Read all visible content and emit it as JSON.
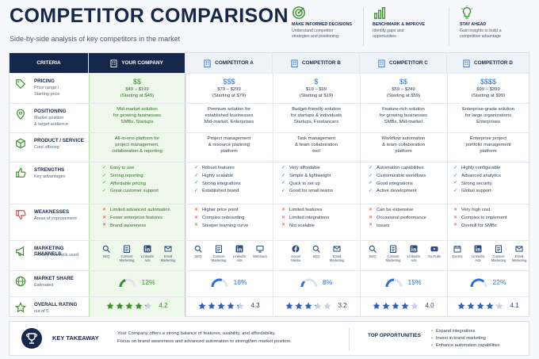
{
  "header": {
    "title": "COMPETITOR COMPARISON",
    "subtitle": "Side-by-side analysis of key competitors in the market",
    "features": [
      {
        "icon": "target-icon",
        "title": "MAKE INFORMED DECISIONS",
        "text1": "Understand competitor",
        "text2": "strategies and positioning"
      },
      {
        "icon": "bar-chart-icon",
        "title": "BENCHMARK & IMPROVE",
        "text1": "Identify gaps and",
        "text2": "opportunities"
      },
      {
        "icon": "lightbulb-icon",
        "title": "STAY AHEAD",
        "text1": "Gain insights to build a",
        "text2": "competitive advantage"
      }
    ]
  },
  "columns": [
    "CRITERIA",
    "YOUR COMPANY",
    "COMPETITOR A",
    "COMPETITOR B",
    "COMPETITOR C",
    "COMPETITOR D"
  ],
  "criteria": [
    {
      "name": "PRICING",
      "sub1": "Price range /",
      "sub2": "Starting price",
      "icon": "price-tag-icon"
    },
    {
      "name": "POSITIONING",
      "sub1": "Market position",
      "sub2": "& target audience",
      "icon": "location-pin-icon"
    },
    {
      "name": "PRODUCT / SERVICE",
      "sub1": "Core offering",
      "sub2": "",
      "icon": "box-icon"
    },
    {
      "name": "STRENGTHS",
      "sub1": "Key advantages",
      "sub2": "",
      "icon": "thumbs-up-icon"
    },
    {
      "name": "WEAKNESSES",
      "sub1": "Areas of improvement",
      "sub2": "",
      "icon": "thumbs-down-icon"
    },
    {
      "name": "MARKETING CHANNELS",
      "sub1": "Primary channels used",
      "sub2": "",
      "icon": "megaphone-icon"
    },
    {
      "name": "MARKET SHARE",
      "sub1": "Estimated",
      "sub2": "",
      "icon": "globe-icon"
    },
    {
      "name": "OVERALL RATING",
      "sub1": "out of 5",
      "sub2": "",
      "icon": "star-outline-icon"
    }
  ],
  "companies": [
    {
      "pricing": {
        "symbol": "$$",
        "range": "$49 – $199",
        "start": "(Starting at $49)"
      },
      "positioning": [
        "Mid-market solution",
        "for growing businesses",
        "SMBs, Startups"
      ],
      "product": [
        "All-in-one platform for",
        "project management,",
        "collaboration & reporting"
      ],
      "strengths": [
        "Easy to use",
        "Strong reporting",
        "Affordable pricing",
        "Great customer support"
      ],
      "weaknesses": [
        "Limited advanced automation",
        "Fewer enterprise features",
        "Brand awareness"
      ],
      "channels": [
        {
          "icon": "search-icon",
          "l1": "SEO",
          "l2": ""
        },
        {
          "icon": "document-icon",
          "l1": "Content",
          "l2": "Marketing"
        },
        {
          "icon": "linkedin-icon",
          "l1": "LinkedIn",
          "l2": "Ads"
        },
        {
          "icon": "mail-icon",
          "l1": "Email",
          "l2": "Marketing"
        }
      ],
      "share": "12%",
      "share_value": 12,
      "rating": "4.2",
      "rating_value": 4.2
    },
    {
      "pricing": {
        "symbol": "$$$",
        "range": "$79 – $299",
        "start": "(Starting at $79)"
      },
      "positioning": [
        "Premium solution for",
        "established businesses",
        "Mid-market, Enterprises"
      ],
      "product": [
        "Project management",
        "& resource planning",
        "platform"
      ],
      "strengths": [
        "Robust features",
        "Highly scalable",
        "Strong integrations",
        "Established brand"
      ],
      "weaknesses": [
        "Higher price point",
        "Complex onboarding",
        "Steeper learning curve"
      ],
      "channels": [
        {
          "icon": "search-icon",
          "l1": "SEO",
          "l2": ""
        },
        {
          "icon": "document-icon",
          "l1": "Content",
          "l2": "Marketing"
        },
        {
          "icon": "linkedin-icon",
          "l1": "LinkedIn",
          "l2": "Ads"
        },
        {
          "icon": "monitor-icon",
          "l1": "Webinars",
          "l2": ""
        }
      ],
      "share": "18%",
      "share_value": 18,
      "rating": "4.3",
      "rating_value": 4.3
    },
    {
      "pricing": {
        "symbol": "$",
        "range": "$19 – $99",
        "start": "(Starting at $19)"
      },
      "positioning": [
        "Budget-friendly solution",
        "for startups & individuals",
        "Startups, Freelancers"
      ],
      "product": [
        "Task management",
        "& team collaboration",
        "tool"
      ],
      "strengths": [
        "Very affordable",
        "Simple & lightweight",
        "Quick to set up",
        "Good for small teams"
      ],
      "weaknesses": [
        "Limited features",
        "Limited integrations",
        "Not scalable"
      ],
      "channels": [
        {
          "icon": "facebook-icon",
          "l1": "Social",
          "l2": "Media"
        },
        {
          "icon": "search-icon",
          "l1": "SEO",
          "l2": ""
        },
        {
          "icon": "mail-icon",
          "l1": "Email",
          "l2": "Marketing"
        }
      ],
      "share": "8%",
      "share_value": 8,
      "rating": "3.2",
      "rating_value": 3.2
    },
    {
      "pricing": {
        "symbol": "$$",
        "range": "$59 – $249",
        "start": "(Starting at $59)"
      },
      "positioning": [
        "Feature-rich solution",
        "for growing businesses",
        "SMBs, Mid-market"
      ],
      "product": [
        "Workflow automation",
        "& team collaboration",
        "platform"
      ],
      "strengths": [
        "Automation capabilities",
        "Customizable workflows",
        "Good integrations",
        "Active development"
      ],
      "weaknesses": [
        "Can be expensive",
        "Occasional performance",
        "issues"
      ],
      "channels": [
        {
          "icon": "search-icon",
          "l1": "SEO",
          "l2": ""
        },
        {
          "icon": "document-icon",
          "l1": "Content",
          "l2": "Marketing"
        },
        {
          "icon": "linkedin-icon",
          "l1": "LinkedIn",
          "l2": "Ads"
        },
        {
          "icon": "youtube-icon",
          "l1": "YouTube",
          "l2": ""
        }
      ],
      "share": "15%",
      "share_value": 15,
      "rating": "4.0",
      "rating_value": 4.0
    },
    {
      "pricing": {
        "symbol": "$$$$",
        "range": "$99 – $399",
        "start": "(Starting at $99)"
      },
      "positioning": [
        "Enterprise-grade solution",
        "for large organizations",
        "Enterprises"
      ],
      "product": [
        "Enterprise project",
        "portfolio management",
        "platform"
      ],
      "strengths": [
        "Highly configurable",
        "Advanced analytics",
        "Strong security",
        "Global support"
      ],
      "weaknesses": [
        "Very high cost",
        "Complex to implement",
        "Overkill for SMBs"
      ],
      "channels": [
        {
          "icon": "calendar-icon",
          "l1": "Events",
          "l2": ""
        },
        {
          "icon": "linkedin-icon",
          "l1": "LinkedIn",
          "l2": "Ads"
        },
        {
          "icon": "document-icon",
          "l1": "Content",
          "l2": "Marketing"
        },
        {
          "icon": "mail-icon",
          "l1": "Email",
          "l2": "Marketing"
        }
      ],
      "share": "22%",
      "share_value": 22,
      "rating": "4.1",
      "rating_value": 4.1
    }
  ],
  "takeaway": {
    "title": "KEY TAKEAWAY",
    "line1": "Your Company offers a strong balance of features, usability, and affordability.",
    "line2": "Focus on brand awareness and advanced automation to strengthen market position."
  },
  "opportunities": {
    "title": "TOP OPPORTUNITIES",
    "items": [
      "Expand integrations",
      "Invest in brand marketing",
      "Enhance automation capabilities"
    ]
  },
  "colors": {
    "navy": "#15274a",
    "green": "#3b8f2a",
    "blue": "#2d6fd6",
    "red": "#d8463c",
    "star": "#2d5fb3"
  }
}
